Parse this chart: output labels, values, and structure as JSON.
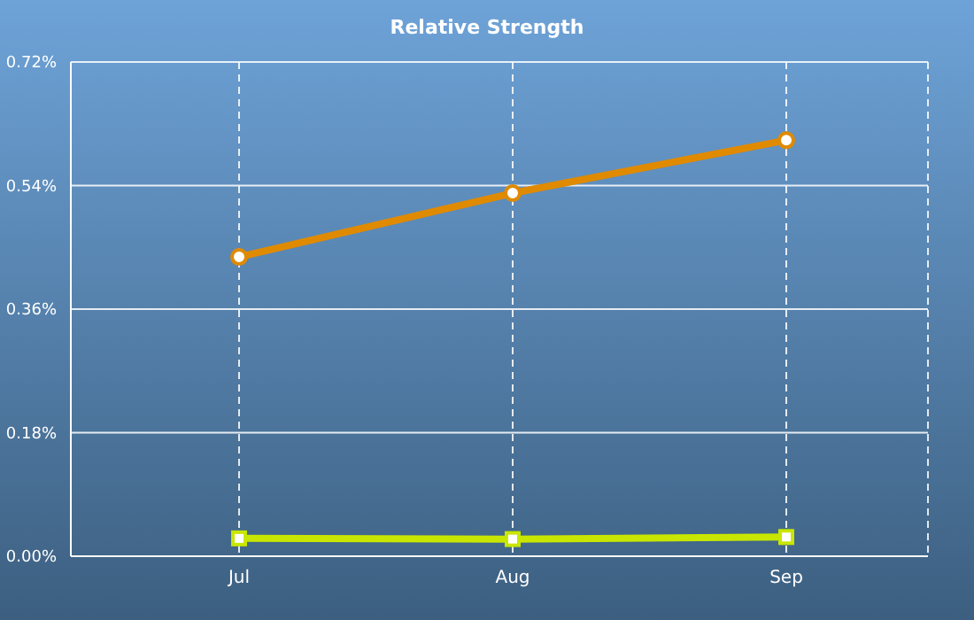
{
  "chart_data": {
    "type": "line",
    "title": "Relative Strength",
    "categories": [
      "Jul",
      "Aug",
      "Sep"
    ],
    "series": [
      {
        "color": "#e08a00",
        "values": [
          0.436,
          0.529,
          0.606
        ],
        "marker": "circle"
      },
      {
        "color": "#c8e600",
        "values": [
          0.026,
          0.025,
          0.028
        ],
        "marker": "square"
      }
    ],
    "ylim": [
      0,
      0.72
    ],
    "yticks": [
      {
        "value": 0,
        "label": "0.00%"
      },
      {
        "value": 0.18,
        "label": "0.18%"
      },
      {
        "value": 0.36,
        "label": "0.36%"
      },
      {
        "value": 0.54,
        "label": "0.54%"
      },
      {
        "value": 0.72,
        "label": "0.72%"
      }
    ],
    "grid": true,
    "line_style": "solid"
  }
}
